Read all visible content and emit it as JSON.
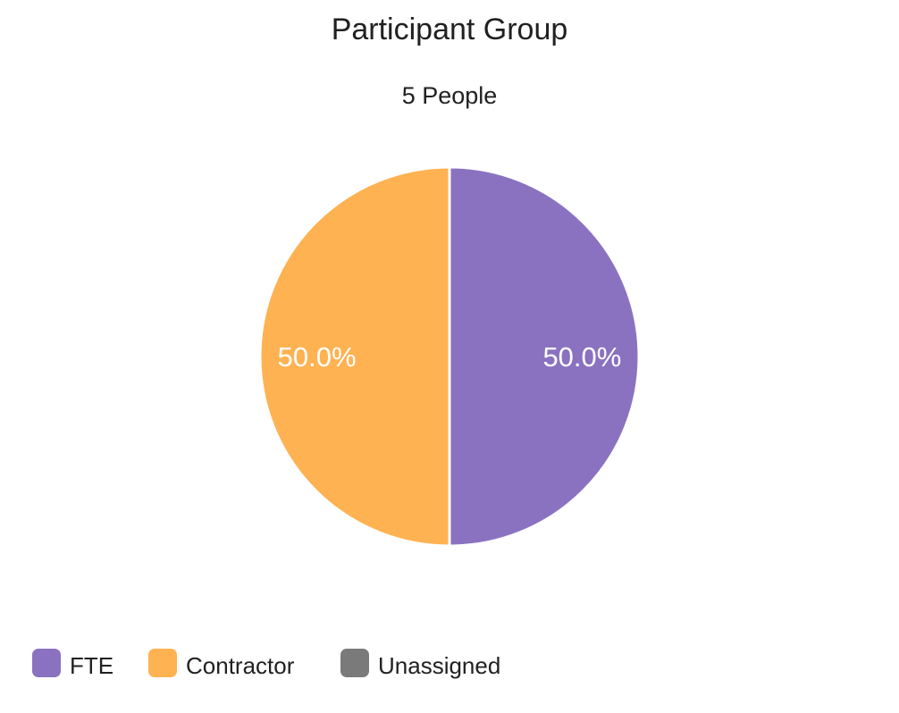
{
  "chart_data": {
    "type": "pie",
    "title": "Participant Group",
    "subtitle": "5 People",
    "categories": [
      "FTE",
      "Contractor",
      "Unassigned"
    ],
    "values": [
      50.0,
      50.0,
      0.0
    ],
    "value_labels": [
      "50.0%",
      "50.0%",
      ""
    ],
    "colors": [
      "#8A72C0",
      "#FFB251",
      "#7A7A7A"
    ],
    "legend_position": "bottom-left",
    "slice_border_color": "#FFFFFF"
  }
}
